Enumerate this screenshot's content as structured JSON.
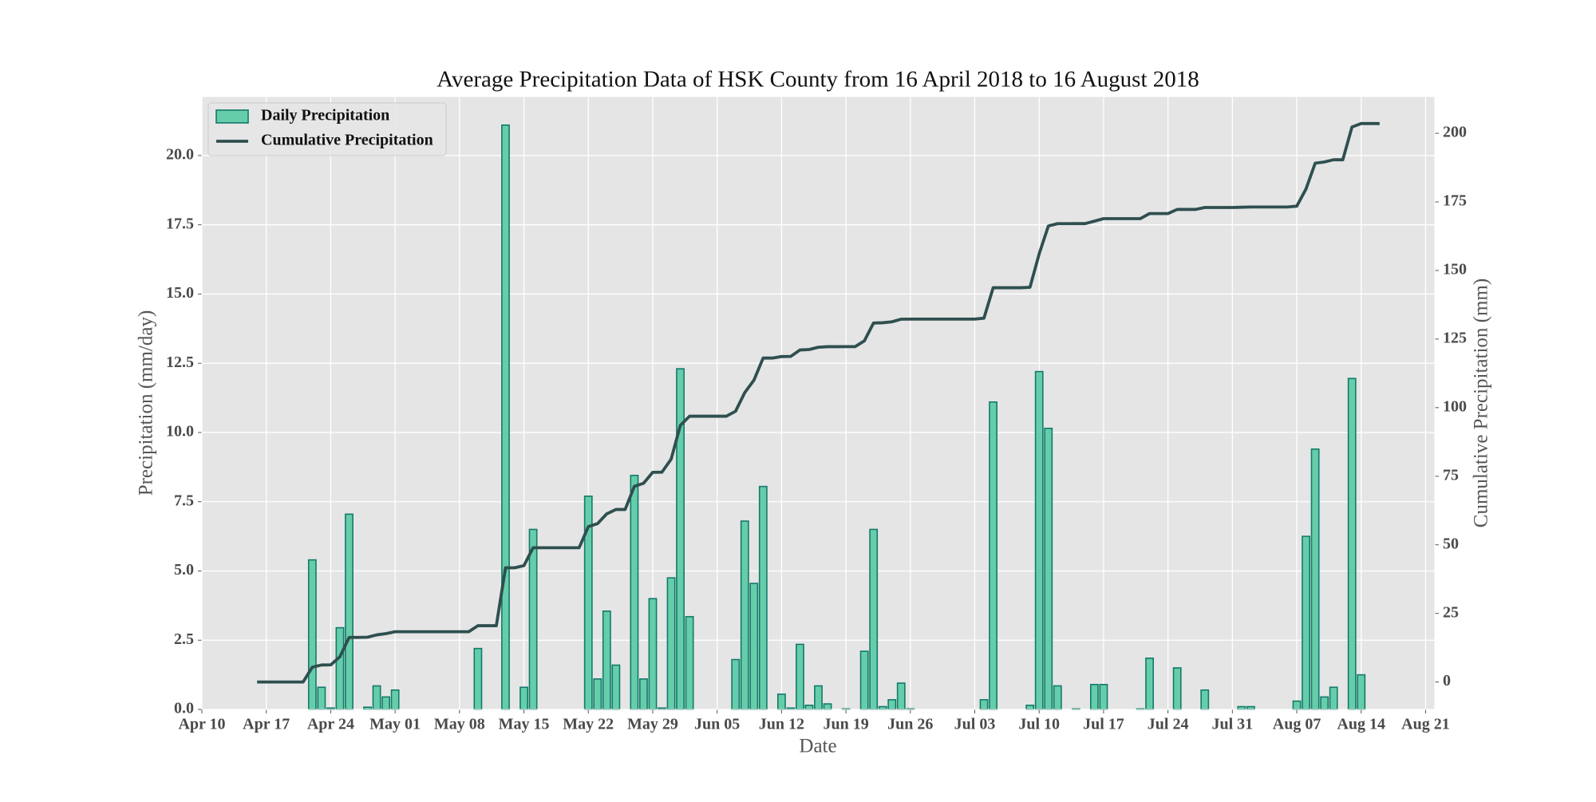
{
  "chart_data": {
    "type": "bar",
    "title": "Average Precipitation Data of HSK County from 16 April 2018 to 16 August 2018",
    "xlabel": "Date",
    "ylabel": "Precipitation (mm/day)",
    "y2label": "Cumulative Precipitation (mm)",
    "x": [
      "Apr 16",
      "Apr 17",
      "Apr 18",
      "Apr 19",
      "Apr 20",
      "Apr 21",
      "Apr 22",
      "Apr 23",
      "Apr 24",
      "Apr 25",
      "Apr 26",
      "Apr 27",
      "Apr 28",
      "Apr 29",
      "Apr 30",
      "May 01",
      "May 02",
      "May 03",
      "May 04",
      "May 05",
      "May 06",
      "May 07",
      "May 08",
      "May 09",
      "May 10",
      "May 11",
      "May 12",
      "May 13",
      "May 14",
      "May 15",
      "May 16",
      "May 17",
      "May 18",
      "May 19",
      "May 20",
      "May 21",
      "May 22",
      "May 23",
      "May 24",
      "May 25",
      "May 26",
      "May 27",
      "May 28",
      "May 29",
      "May 30",
      "May 31",
      "Jun 01",
      "Jun 02",
      "Jun 03",
      "Jun 04",
      "Jun 05",
      "Jun 06",
      "Jun 07",
      "Jun 08",
      "Jun 09",
      "Jun 10",
      "Jun 11",
      "Jun 12",
      "Jun 13",
      "Jun 14",
      "Jun 15",
      "Jun 16",
      "Jun 17",
      "Jun 18",
      "Jun 19",
      "Jun 20",
      "Jun 21",
      "Jun 22",
      "Jun 23",
      "Jun 24",
      "Jun 25",
      "Jun 26",
      "Jun 27",
      "Jun 28",
      "Jun 29",
      "Jun 30",
      "Jul 01",
      "Jul 02",
      "Jul 03",
      "Jul 04",
      "Jul 05",
      "Jul 06",
      "Jul 07",
      "Jul 08",
      "Jul 09",
      "Jul 10",
      "Jul 11",
      "Jul 12",
      "Jul 13",
      "Jul 14",
      "Jul 15",
      "Jul 16",
      "Jul 17",
      "Jul 18",
      "Jul 19",
      "Jul 20",
      "Jul 21",
      "Jul 22",
      "Jul 23",
      "Jul 24",
      "Jul 25",
      "Jul 26",
      "Jul 27",
      "Jul 28",
      "Jul 29",
      "Jul 30",
      "Jul 31",
      "Aug 01",
      "Aug 02",
      "Aug 03",
      "Aug 04",
      "Aug 05",
      "Aug 06",
      "Aug 07",
      "Aug 08",
      "Aug 09",
      "Aug 10",
      "Aug 11",
      "Aug 12",
      "Aug 13",
      "Aug 14",
      "Aug 15",
      "Aug 16"
    ],
    "xlim": [
      "Apr 10",
      "Aug 22"
    ],
    "xticks": [
      "Apr 10",
      "Apr 17",
      "Apr 24",
      "May 01",
      "May 08",
      "May 15",
      "May 22",
      "May 29",
      "Jun 05",
      "Jun 12",
      "Jun 19",
      "Jun 26",
      "Jul 03",
      "Jul 10",
      "Jul 17",
      "Jul 24",
      "Jul 31",
      "Aug 07",
      "Aug 14",
      "Aug 21"
    ],
    "ylim": [
      0,
      22.13
    ],
    "yticks": [
      {
        "value": 0,
        "label": "0.0"
      },
      {
        "value": 2.5,
        "label": "2.5"
      },
      {
        "value": 5,
        "label": "5.0"
      },
      {
        "value": 7.5,
        "label": "7.5"
      },
      {
        "value": 10,
        "label": "10.0"
      },
      {
        "value": 12.5,
        "label": "12.5"
      },
      {
        "value": 15,
        "label": "15.0"
      },
      {
        "value": 17.5,
        "label": "17.5"
      },
      {
        "value": 20,
        "label": "20.0"
      }
    ],
    "y2lim": [
      -10,
      213.4
    ],
    "y2ticks": [
      0,
      25,
      50,
      75,
      100,
      125,
      150,
      175,
      200
    ],
    "grid": true,
    "legend": "upper left",
    "series": [
      {
        "name": "Daily Precipitation",
        "type": "bar",
        "color": "#66cdaa",
        "edgecolor": "#137a6a",
        "values": [
          0,
          0,
          0,
          0,
          0,
          0,
          5.4,
          0.8,
          0.05,
          2.95,
          7.05,
          0,
          0.08,
          0.85,
          0.45,
          0.7,
          0,
          0,
          0,
          0,
          0,
          0,
          0,
          0,
          2.2,
          0,
          0,
          21.1,
          0,
          0.8,
          6.5,
          0,
          0,
          0,
          0,
          0,
          7.7,
          1.1,
          3.55,
          1.6,
          0,
          8.45,
          1.1,
          4.0,
          0.05,
          4.75,
          12.3,
          3.35,
          0,
          0,
          0,
          0,
          1.8,
          6.8,
          4.55,
          8.05,
          0,
          0.55,
          0.05,
          2.35,
          0.15,
          0.85,
          0.2,
          0,
          0.02,
          0,
          2.1,
          6.5,
          0.1,
          0.35,
          0.95,
          0.02,
          0,
          0,
          0,
          0,
          0,
          0,
          0,
          0.35,
          11.1,
          0,
          0,
          0,
          0.15,
          12.2,
          10.15,
          0.85,
          0,
          0.02,
          0,
          0.9,
          0.9,
          0,
          0,
          0,
          0.02,
          1.85,
          0,
          0,
          1.5,
          0,
          0,
          0.7,
          0,
          0,
          0,
          0.1,
          0.1,
          0,
          0,
          0,
          0,
          0.3,
          6.25,
          9.4,
          0.45,
          0.8,
          0,
          11.95,
          1.25,
          0,
          0
        ]
      },
      {
        "name": "Cumulative Precipitation",
        "type": "line",
        "axis": "y2",
        "color": "#2f4f4f",
        "values": [
          0,
          0,
          0,
          0,
          0,
          0,
          5.4,
          6.2,
          6.25,
          9.2,
          16.25,
          16.25,
          16.33,
          17.18,
          17.63,
          18.33,
          18.33,
          18.33,
          18.33,
          18.33,
          18.33,
          18.33,
          18.33,
          18.33,
          20.53,
          20.53,
          20.53,
          41.63,
          41.63,
          42.43,
          48.93,
          48.93,
          48.93,
          48.93,
          48.93,
          48.93,
          56.63,
          57.73,
          61.28,
          62.88,
          62.88,
          71.33,
          72.43,
          76.43,
          76.48,
          81.23,
          93.53,
          96.88,
          96.88,
          96.88,
          96.88,
          96.88,
          98.68,
          105.48,
          110.03,
          118.08,
          118.08,
          118.63,
          118.68,
          121.03,
          121.18,
          122.03,
          122.23,
          122.23,
          122.25,
          122.25,
          124.35,
          130.85,
          130.95,
          131.3,
          132.25,
          132.27,
          132.27,
          132.27,
          132.27,
          132.27,
          132.27,
          132.27,
          132.27,
          132.62,
          143.72,
          143.72,
          143.72,
          143.72,
          143.87,
          156.07,
          166.22,
          167.07,
          167.07,
          167.09,
          167.09,
          167.99,
          168.89,
          168.89,
          168.89,
          168.89,
          168.91,
          170.76,
          170.76,
          170.76,
          172.26,
          172.26,
          172.26,
          172.96,
          172.96,
          172.96,
          172.96,
          173.06,
          173.16,
          173.16,
          173.16,
          173.16,
          173.16,
          173.46,
          179.71,
          189.11,
          189.56,
          190.36,
          190.36,
          202.31,
          203.56,
          203.56,
          203.56
        ]
      }
    ]
  }
}
